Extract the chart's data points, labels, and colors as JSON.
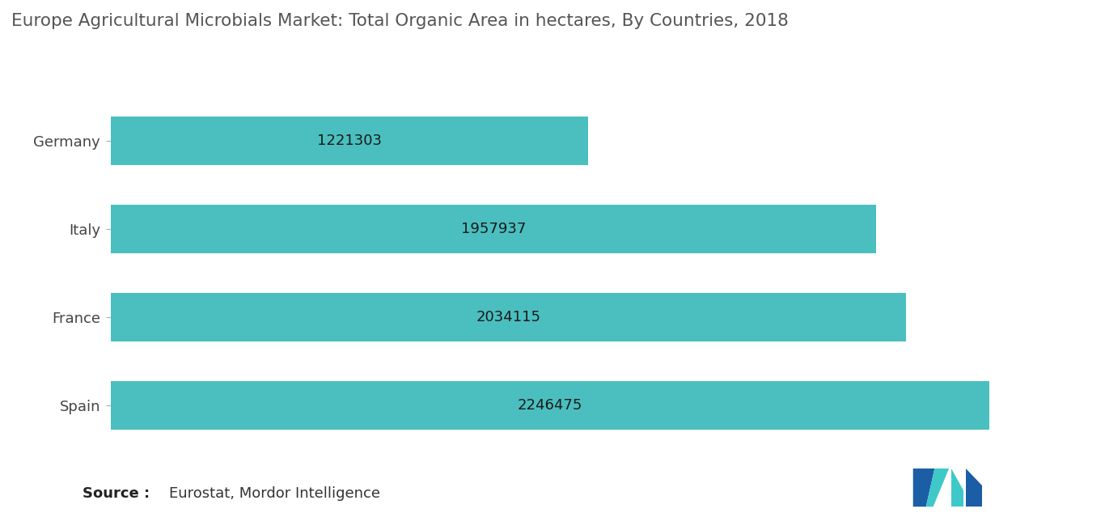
{
  "title": "Europe Agricultural Microbials Market: Total Organic Area in hectares, By Countries, 2018",
  "categories": [
    "Spain",
    "France",
    "Italy",
    "Germany"
  ],
  "values": [
    2246475,
    2034115,
    1957937,
    1221303
  ],
  "bar_color": "#4BBFBF",
  "bar_edge_color": "none",
  "label_color": "#1a1a1a",
  "title_color": "#555555",
  "background_color": "#ffffff",
  "xlim": [
    0,
    2500000
  ],
  "bar_height": 0.55,
  "title_fontsize": 15.5,
  "label_fontsize": 13,
  "tick_fontsize": 13,
  "source_fontsize": 13,
  "logo_colors_left": [
    "#1B5EA6",
    "#3BB8C8"
  ],
  "logo_colors_right": [
    "#3BB8C8",
    "#1B5EA6"
  ]
}
